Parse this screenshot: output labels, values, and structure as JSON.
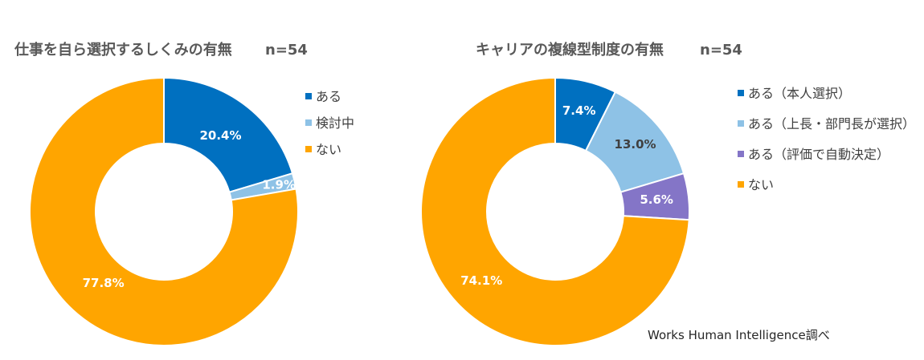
{
  "colors": {
    "blue": "#0070C0",
    "light_blue": "#8EC2E6",
    "purple": "#8475C7",
    "orange": "#FFA500",
    "title": "#595959",
    "label_light": "#ffffff",
    "label_dark": "#404040"
  },
  "source": "Works Human Intelligence調べ",
  "chart_data": [
    {
      "type": "pie",
      "donut": true,
      "title": "仕事を自ら選択するしくみの有無",
      "sample": "n=54",
      "categories": [
        "ある",
        "検討中",
        "ない"
      ],
      "values": [
        20.4,
        1.9,
        77.8
      ],
      "value_labels": [
        "20.4%",
        "1.9%",
        "77.8%"
      ],
      "colors": [
        "#0070C0",
        "#8EC2E6",
        "#FFA500"
      ],
      "legend_position": "right"
    },
    {
      "type": "pie",
      "donut": true,
      "title": "キャリアの複線型制度の有無",
      "sample": "n=54",
      "categories": [
        "ある（本人選択）",
        "ある（上長・部門長が選択）",
        "ある（評価で自動決定）",
        "ない"
      ],
      "values": [
        7.4,
        13.0,
        5.6,
        74.1
      ],
      "value_labels": [
        "7.4%",
        "13.0%",
        "5.6%",
        "74.1%"
      ],
      "colors": [
        "#0070C0",
        "#8EC2E6",
        "#8475C7",
        "#FFA500"
      ],
      "legend_position": "right"
    }
  ]
}
